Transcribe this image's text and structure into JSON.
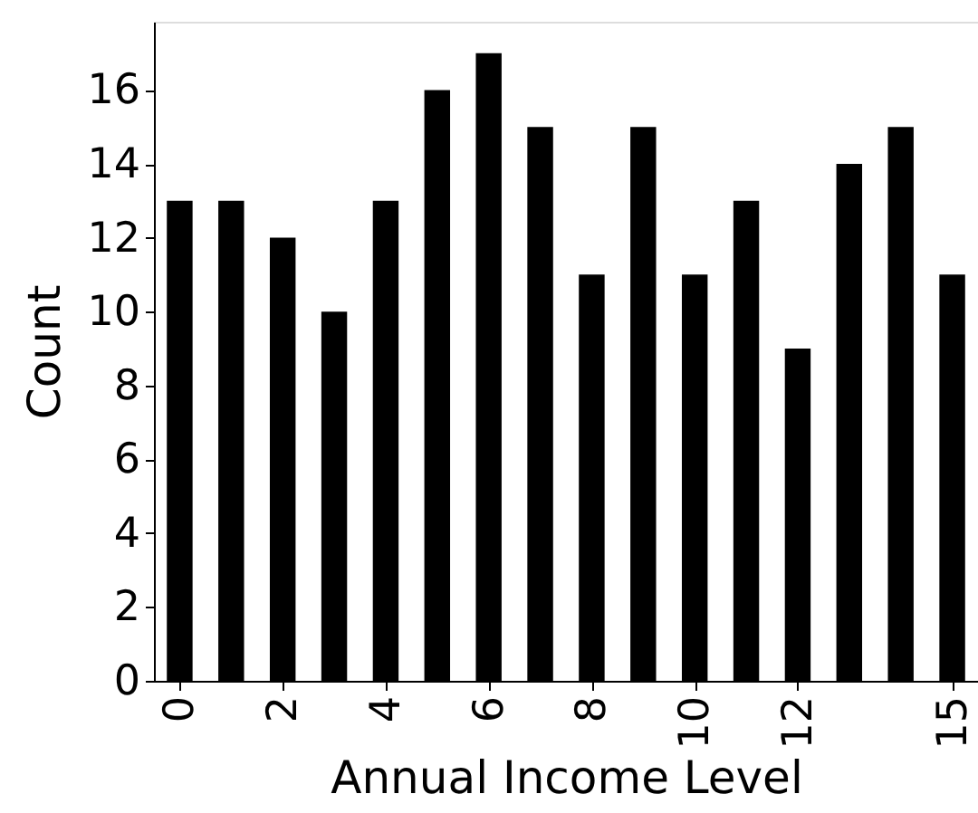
{
  "chart_data": {
    "type": "bar",
    "xlabel": "Annual Income Level",
    "ylabel": "Count",
    "x": [
      0,
      1,
      2,
      3,
      4,
      5,
      6,
      7,
      8,
      9,
      10,
      11,
      12,
      13,
      14,
      15
    ],
    "values": [
      13,
      13,
      12,
      10,
      13,
      16,
      17,
      15,
      11,
      15,
      11,
      13,
      9,
      14,
      15,
      11
    ],
    "color": "#000000",
    "xlim": [
      -0.5,
      15.5
    ],
    "ylim": [
      0,
      17.85
    ],
    "xticks": [
      0,
      2,
      4,
      6,
      8,
      10,
      12,
      15
    ],
    "yticks": [
      0,
      2,
      4,
      6,
      8,
      10,
      12,
      14,
      16
    ]
  }
}
